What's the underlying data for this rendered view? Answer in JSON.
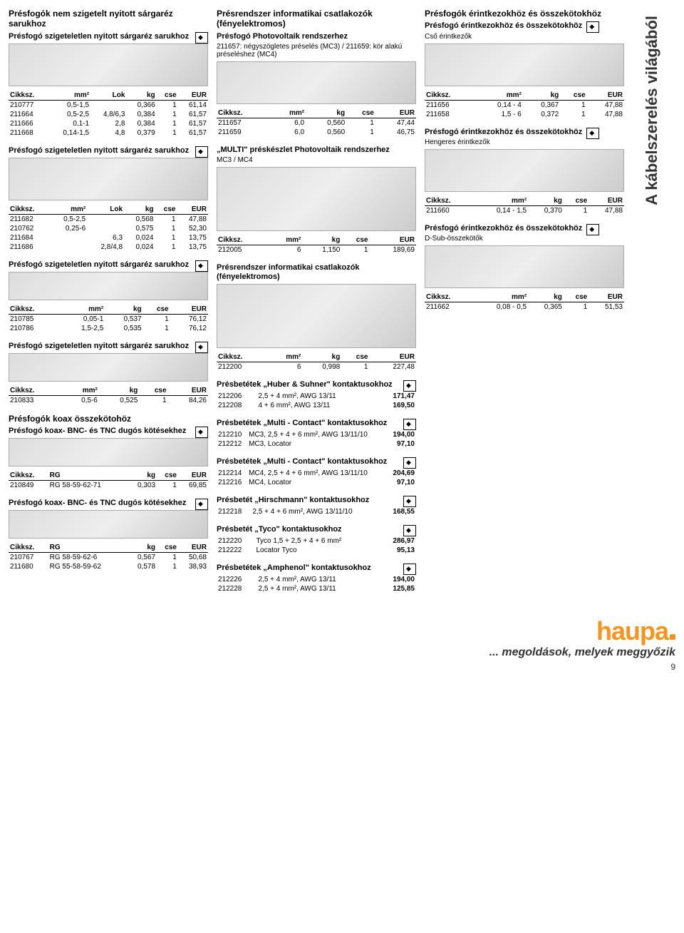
{
  "sidebar_title": "A kábelszerelés világából",
  "col1": {
    "h1": "Présfogók nem szigetelt nyitott sárgaréz sarukhoz",
    "s1_title": "Présfogó szigeteletlen nyitott sárgaréz sarukhoz",
    "t1": {
      "cols": [
        "Cikksz.",
        "mm²",
        "Lok",
        "kg",
        "cse",
        "EUR"
      ],
      "rows": [
        [
          "210777",
          "0,5-1,5",
          "",
          "0,366",
          "1",
          "61,14"
        ],
        [
          "211664",
          "0,5-2,5",
          "4,8/6,3",
          "0,384",
          "1",
          "61,57"
        ],
        [
          "211666",
          "0,1-1",
          "2,8",
          "0,384",
          "1",
          "61,57"
        ],
        [
          "211668",
          "0,14-1,5",
          "4,8",
          "0,379",
          "1",
          "61,57"
        ]
      ]
    },
    "s2_title": "Présfogó szigeteletlen nyitott sárgaréz sarukhoz",
    "t2": {
      "cols": [
        "Cikksz.",
        "mm²",
        "Lok",
        "kg",
        "cse",
        "EUR"
      ],
      "rows": [
        [
          "211682",
          "0,5-2,5",
          "",
          "0,568",
          "1",
          "47,88"
        ],
        [
          "210762",
          "0,25-6",
          "",
          "0,575",
          "1",
          "52,30"
        ],
        [
          "211684",
          "",
          "6,3",
          "0,024",
          "1",
          "13,75"
        ],
        [
          "211686",
          "",
          "2,8/4,8",
          "0,024",
          "1",
          "13,75"
        ]
      ]
    },
    "s3_title": "Présfogó szigeteletlen nyitott sárgaréz sarukhoz",
    "t3": {
      "cols": [
        "Cikksz.",
        "mm²",
        "kg",
        "cse",
        "EUR"
      ],
      "rows": [
        [
          "210785",
          "0,05-1",
          "0,537",
          "1",
          "76,12"
        ],
        [
          "210786",
          "1,5-2,5",
          "0,535",
          "1",
          "76,12"
        ]
      ]
    },
    "s4_title": "Présfogó szigeteletlen nyitott sárgaréz sarukhoz",
    "t4": {
      "cols": [
        "Cikksz.",
        "mm²",
        "kg",
        "cse",
        "EUR"
      ],
      "rows": [
        [
          "210833",
          "0,5-6",
          "0,525",
          "1",
          "84,26"
        ]
      ]
    },
    "h2": "Présfogók koax összekötohöz",
    "s5_title": "Présfogó koax- BNC- és TNC dugós kötésekhez",
    "t5": {
      "cols": [
        "Cikksz.",
        "RG",
        "kg",
        "cse",
        "EUR"
      ],
      "rows": [
        [
          "210849",
          "RG 58-59-62-71",
          "0,303",
          "1",
          "69,85"
        ]
      ]
    },
    "s6_title": "Présfogó koax- BNC- és TNC dugós kötésekhez",
    "t6": {
      "cols": [
        "Cikksz.",
        "RG",
        "kg",
        "cse",
        "EUR"
      ],
      "rows": [
        [
          "210767",
          "RG 58-59-62-6",
          "0,567",
          "1",
          "50,68"
        ],
        [
          "211680",
          "RG 55-58-59-62",
          "0,578",
          "1",
          "38,93"
        ]
      ]
    }
  },
  "col2": {
    "h1": "Présrendszer informatikai csatlakozók (fényelektromos)",
    "s1_title": "Présfogó Photovoltaik rendszerhez",
    "s1_sub": "211657: négyszögletes préselés (MC3) / 211659: kör alakú préseléshez (MC4)",
    "t1": {
      "cols": [
        "Cikksz.",
        "mm²",
        "kg",
        "cse",
        "EUR"
      ],
      "rows": [
        [
          "211657",
          "6,0",
          "0,560",
          "1",
          "47,44"
        ],
        [
          "211659",
          "6,0",
          "0,560",
          "1",
          "46,75"
        ]
      ]
    },
    "s2_title": "„MULTI\" préskészlet Photovoltaik rendszerhez",
    "s2_sub": "MC3 / MC4",
    "t2": {
      "cols": [
        "Cikksz.",
        "mm²",
        "kg",
        "cse",
        "EUR"
      ],
      "rows": [
        [
          "212005",
          "6",
          "1,150",
          "1",
          "189,69"
        ]
      ]
    },
    "s3_title": "Présrendszer informatikai csatlakozók (fényelektromos)",
    "t3": {
      "cols": [
        "Cikksz.",
        "mm²",
        "kg",
        "cse",
        "EUR"
      ],
      "rows": [
        [
          "212200",
          "6",
          "0,998",
          "1",
          "227,48"
        ]
      ]
    },
    "s4_title": "Présbetétek „Huber & Suhner\" kontaktusokhoz",
    "t4_rows": [
      [
        "212206",
        "2,5 + 4 mm², AWG 13/11",
        "171,47"
      ],
      [
        "212208",
        "4 + 6 mm², AWG 13/11",
        "169,50"
      ]
    ],
    "s5_title": "Présbetétek „Multi - Contact\" kontaktusokhoz",
    "t5_rows": [
      [
        "212210",
        "MC3, 2,5 + 4 + 6 mm², AWG 13/11/10",
        "194,00"
      ],
      [
        "212212",
        "MC3, Locator",
        "97,10"
      ]
    ],
    "s6_title": "Présbetétek „Multi - Contact\" kontaktusokhoz",
    "t6_rows": [
      [
        "212214",
        "MC4, 2,5 + 4 + 6 mm², AWG 13/11/10",
        "204,69"
      ],
      [
        "212216",
        "MC4, Locator",
        "97,10"
      ]
    ],
    "s7_title": "Présbetét „Hirschmann\" kontaktusokhoz",
    "t7_rows": [
      [
        "212218",
        "2,5 + 4 + 6 mm², AWG 13/11/10",
        "168,55"
      ]
    ],
    "s8_title": "Présbetét „Tyco\" kontaktusokhoz",
    "t8_rows": [
      [
        "212220",
        "Tyco 1,5 + 2,5 + 4 + 6 mm²",
        "286,97"
      ],
      [
        "212222",
        "Locator Tyco",
        "95,13"
      ]
    ],
    "s9_title": "Présbetétek „Amphenol\" kontaktusokhoz",
    "t9_rows": [
      [
        "212226",
        "2,5 + 4 mm², AWG 13/11",
        "194,00"
      ],
      [
        "212228",
        "2,5 + 4 mm², AWG 13/11",
        "125,85"
      ]
    ]
  },
  "col3": {
    "h1": "Présfogók érintkezokhöz és összekötokhöz",
    "s1_title": "Présfogó érintkezokhöz és összekötokhöz",
    "s1_sub": "Cső érintkezők",
    "t1": {
      "cols": [
        "Cikksz.",
        "mm²",
        "kg",
        "cse",
        "EUR"
      ],
      "rows": [
        [
          "211656",
          "0,14 - 4",
          "0,367",
          "1",
          "47,88"
        ],
        [
          "211658",
          "1,5 - 6",
          "0,372",
          "1",
          "47,88"
        ]
      ]
    },
    "s2_title": "Présfogó érintkezokhöz és összekötokhöz",
    "s2_sub": "Hengeres érintkezők",
    "t2": {
      "cols": [
        "Cikksz.",
        "mm²",
        "kg",
        "cse",
        "EUR"
      ],
      "rows": [
        [
          "211660",
          "0,14 - 1,5",
          "0,370",
          "1",
          "47,88"
        ]
      ]
    },
    "s3_title": "Présfogó érintkezokhöz és összekötokhöz",
    "s3_sub": "D-Sub-összekötők",
    "t3": {
      "cols": [
        "Cikksz.",
        "mm²",
        "kg",
        "cse",
        "EUR"
      ],
      "rows": [
        [
          "211662",
          "0,08 - 0,5",
          "0,365",
          "1",
          "51,53"
        ]
      ]
    }
  },
  "footer": {
    "tagline": "... megoldások, melyek meggyőzik",
    "logo": "haupa",
    "page": "9"
  }
}
